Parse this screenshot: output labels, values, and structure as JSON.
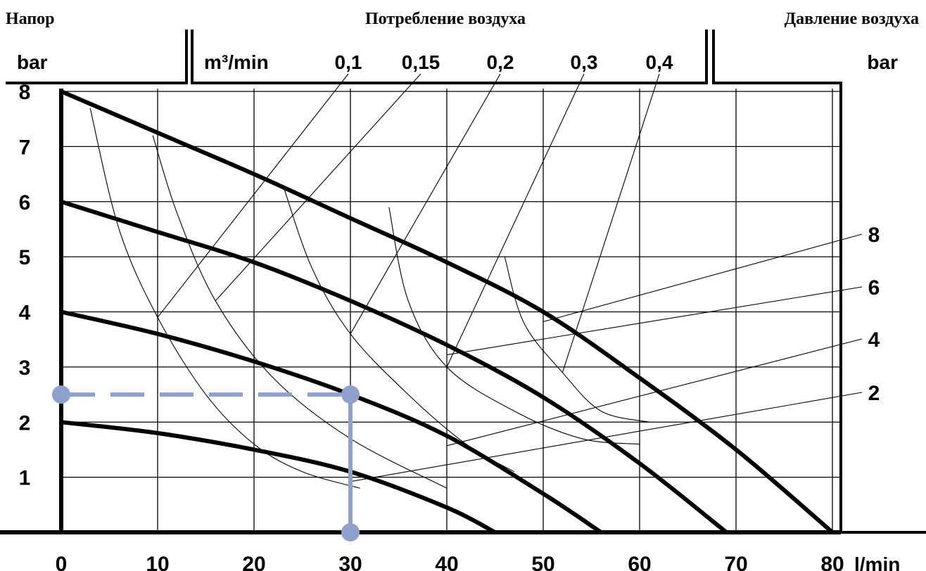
{
  "headers": {
    "left": "Напор",
    "center": "Потребление воздуха",
    "right": "Давление воздуха"
  },
  "chart_data": {
    "type": "line",
    "left_unit": "bar",
    "right_unit": "bar",
    "consumption_unit": "m³/min",
    "xlabel": "l/min",
    "x_ticks": [
      "0",
      "10",
      "20",
      "30",
      "40",
      "50",
      "60",
      "70",
      "80"
    ],
    "y_ticks": [
      "1",
      "2",
      "3",
      "4",
      "5",
      "6",
      "7",
      "8"
    ],
    "xlim": [
      0,
      80
    ],
    "ylim": [
      0,
      8
    ],
    "grid": true,
    "series": [
      {
        "name": "2",
        "x": [
          0,
          10,
          20,
          30,
          40,
          45
        ],
        "y": [
          2,
          1.8,
          1.5,
          1.1,
          0.45,
          0
        ]
      },
      {
        "name": "4",
        "x": [
          0,
          10,
          20,
          30,
          40,
          50,
          56
        ],
        "y": [
          4,
          3.6,
          3.1,
          2.5,
          1.75,
          0.7,
          0
        ]
      },
      {
        "name": "6",
        "x": [
          0,
          10,
          20,
          30,
          40,
          50,
          60,
          69
        ],
        "y": [
          6,
          5.45,
          4.9,
          4.2,
          3.4,
          2.45,
          1.25,
          0
        ]
      },
      {
        "name": "8",
        "x": [
          0,
          10,
          20,
          30,
          40,
          50,
          60,
          70,
          80
        ],
        "y": [
          8,
          7.25,
          6.5,
          5.7,
          4.9,
          4.0,
          2.8,
          1.5,
          0
        ]
      }
    ],
    "air_consumption_lines": [
      {
        "name": "0,1",
        "x": [
          3,
          6,
          10,
          15,
          20,
          25,
          31
        ],
        "y": [
          7.7,
          5.5,
          3.9,
          2.5,
          1.6,
          1.1,
          0.8
        ]
      },
      {
        "name": "0,15",
        "x": [
          9.5,
          12,
          16,
          22,
          30,
          40
        ],
        "y": [
          7.2,
          5.8,
          4.2,
          2.8,
          1.7,
          0.8
        ]
      },
      {
        "name": "0,2",
        "x": [
          23,
          26,
          30,
          36,
          42,
          47
        ],
        "y": [
          6.3,
          4.8,
          3.6,
          2.5,
          1.6,
          1.1
        ]
      },
      {
        "name": "0,3",
        "x": [
          34,
          36,
          40,
          47,
          54,
          60
        ],
        "y": [
          5.9,
          4.2,
          3.0,
          2.2,
          1.7,
          1.6
        ]
      },
      {
        "name": "0,4",
        "x": [
          46,
          48,
          52,
          56,
          61
        ],
        "y": [
          5.0,
          3.8,
          2.9,
          2.2,
          2.0
        ]
      }
    ],
    "example_point": {
      "x": 30,
      "y": 2.5
    }
  }
}
